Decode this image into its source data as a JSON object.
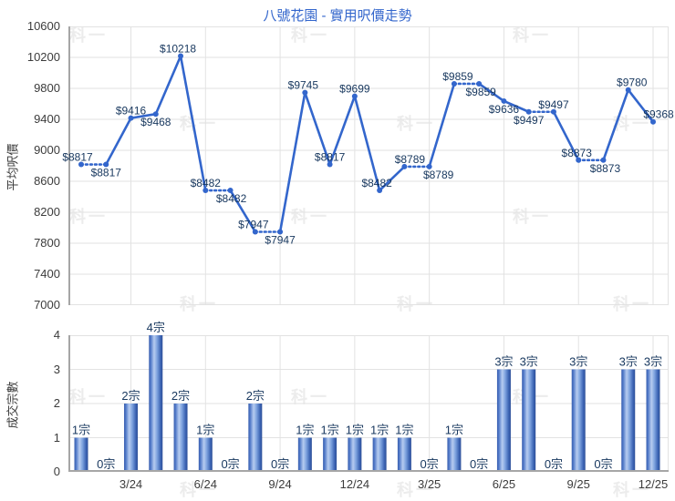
{
  "title": "八號花園 - 實用呎價走勢",
  "watermark": {
    "text": "科一"
  },
  "style": {
    "title_color": "#3366cc",
    "line_color": "#3366cc",
    "point_label_color": "#17375e",
    "bar_label_color": "#17375e",
    "axis_text_color": "#3c3c3c",
    "grid_color": "#e2e2e2",
    "axis_line_color": "#a6a6a6",
    "watermark_color": "#ececec",
    "bar_gradient": [
      "#3a5fae",
      "#4e77c7",
      "#b7ccf0",
      "#7da2de",
      "#3c64b4",
      "#2e5098"
    ]
  },
  "chart_data": [
    {
      "type": "line",
      "title": "八號花園 - 實用呎價走勢",
      "ylabel": "平均呎價",
      "ylim": [
        7000,
        10600
      ],
      "ytick_step": 400,
      "yticks": [
        "10600",
        "10200",
        "9800",
        "9400",
        "9000",
        "8600",
        "8200",
        "7800",
        "7400",
        "7000"
      ],
      "x": [
        "1/24",
        "2/24",
        "3/24",
        "4/24",
        "5/24",
        "6/24",
        "7/24",
        "8/24",
        "9/24",
        "10/24",
        "11/24",
        "12/24",
        "1/25",
        "2/25",
        "3/25",
        "4/25",
        "5/25",
        "6/25",
        "7/25",
        "8/25",
        "9/25",
        "10/25",
        "11/25",
        "12/25"
      ],
      "values": [
        8817,
        8817,
        9416,
        9468,
        10218,
        8482,
        8482,
        7947,
        7947,
        9745,
        8817,
        9699,
        8482,
        8789,
        8789,
        9859,
        9859,
        9636,
        9497,
        9497,
        8873,
        8873,
        9780,
        9368
      ],
      "point_labels": [
        "$8817",
        "$8817",
        "$9416",
        "$9468",
        "$10218",
        "$8482",
        "$8482",
        "$7947",
        "$7947",
        "$9745",
        "$8817",
        "$9699",
        "$8482",
        "$8789",
        "$8789",
        "$9859",
        "$9859",
        "$9636",
        "$9497",
        "$9497",
        "$8873",
        "$8873",
        "$9780",
        "$9368"
      ],
      "label_side": [
        "above",
        "below",
        "above",
        "below",
        "above",
        "above",
        "below",
        "above",
        "below",
        "above",
        "above",
        "above",
        "above",
        "above",
        "below",
        "above",
        "below",
        "below",
        "below",
        "above",
        "above",
        "below",
        "above",
        "above"
      ],
      "label_dx": [
        -4,
        0,
        0,
        0,
        -3,
        0,
        1,
        -2,
        0,
        -2,
        0,
        0,
        -3,
        6,
        10,
        4,
        2,
        0,
        0,
        0,
        -2,
        2,
        4,
        6
      ],
      "dotted_from_prev": [
        false,
        true,
        false,
        false,
        false,
        false,
        true,
        false,
        true,
        false,
        false,
        false,
        false,
        false,
        true,
        false,
        true,
        false,
        false,
        true,
        false,
        true,
        false,
        false
      ],
      "legend": "none",
      "grid": true
    },
    {
      "type": "bar",
      "ylabel": "成交宗數",
      "ylim": [
        0,
        4
      ],
      "ytick_step": 1,
      "yticks": [
        "4",
        "3",
        "2",
        "1",
        "0"
      ],
      "categories": [
        "1/24",
        "2/24",
        "3/24",
        "4/24",
        "5/24",
        "6/24",
        "7/24",
        "8/24",
        "9/24",
        "10/24",
        "11/24",
        "12/24",
        "1/25",
        "2/25",
        "3/25",
        "4/25",
        "5/25",
        "6/25",
        "7/25",
        "8/25",
        "9/25",
        "10/25",
        "11/25",
        "12/25"
      ],
      "values": [
        1,
        0,
        2,
        4,
        2,
        1,
        0,
        2,
        0,
        1,
        1,
        1,
        1,
        1,
        0,
        1,
        0,
        3,
        3,
        0,
        3,
        0,
        3,
        3
      ],
      "bar_labels": [
        "1宗",
        "0宗",
        "2宗",
        "4宗",
        "2宗",
        "1宗",
        "0宗",
        "2宗",
        "0宗",
        "1宗",
        "1宗",
        "1宗",
        "1宗",
        "1宗",
        "0宗",
        "1宗",
        "0宗",
        "3宗",
        "3宗",
        "0宗",
        "3宗",
        "0宗",
        "3宗",
        "3宗"
      ],
      "xticks": [
        {
          "index": 2,
          "label": "3/24"
        },
        {
          "index": 5,
          "label": "6/24"
        },
        {
          "index": 8,
          "label": "9/24"
        },
        {
          "index": 11,
          "label": "12/24"
        },
        {
          "index": 14,
          "label": "3/25"
        },
        {
          "index": 17,
          "label": "6/25"
        },
        {
          "index": 20,
          "label": "9/25"
        },
        {
          "index": 23,
          "label": "12/25"
        }
      ],
      "legend": "none",
      "grid": true
    }
  ]
}
